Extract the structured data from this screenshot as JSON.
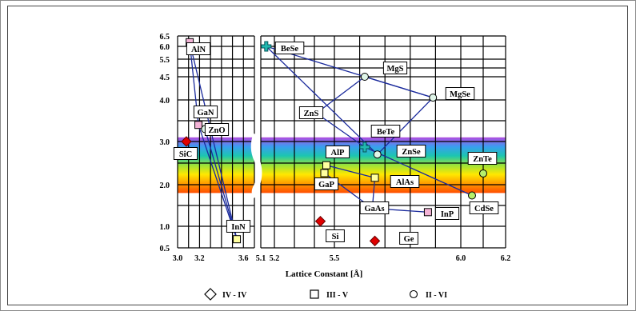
{
  "chart_data": {
    "type": "scatter",
    "title": "",
    "xlabel": "Lattice Constant [Å]",
    "ylabel": "",
    "x_panel_left": {
      "range": [
        3.0,
        3.7
      ],
      "ticks": [
        3.0,
        3.2,
        3.6
      ],
      "tick_labels": [
        "3.0",
        "3.2",
        "3.6"
      ]
    },
    "x_panel_right": {
      "range": [
        5.1,
        6.2
      ],
      "ticks": [
        5.1,
        5.2,
        5.5,
        6.0,
        6.2
      ],
      "tick_labels": [
        "5.1",
        "5.2",
        "5.5",
        "6.0",
        "6.2"
      ]
    },
    "y_ticks": [
      0.5,
      1.0,
      1.5,
      2.0,
      2.5,
      3.0,
      3.5,
      4.0,
      4.5,
      5.0,
      5.5,
      6.0,
      6.5
    ],
    "y_tick_labels": [
      "0.5",
      "1.0",
      "",
      "2.0",
      "",
      "3.0",
      "",
      "4.0",
      "4.5",
      "",
      "5.5",
      "6.0",
      "6.5"
    ],
    "y_scale": "nonlinear",
    "grid": true,
    "visible_spectrum_band": {
      "ymin": 1.8,
      "ymax": 3.1,
      "colors": [
        "#ff4d00",
        "#ff9a00",
        "#ffe800",
        "#9be23a",
        "#1cc6b0",
        "#3a9ef0",
        "#b24be0"
      ]
    },
    "points": [
      {
        "name": "AlN",
        "x": 3.11,
        "y": 6.2,
        "group": "III - V",
        "color": "#f3b3d6",
        "marker": "square"
      },
      {
        "name": "GaN",
        "x": 3.19,
        "y": 3.4,
        "group": "III - V",
        "color": "#f3b3d6",
        "marker": "square"
      },
      {
        "name": "InN",
        "x": 3.54,
        "y": 0.7,
        "group": "III - V",
        "color": "#ffffa0",
        "marker": "square"
      },
      {
        "name": "SiC",
        "x": 3.08,
        "y": 3.0,
        "group": "IV - IV",
        "color": "#e00000",
        "marker": "diamond"
      },
      {
        "name": "ZnO",
        "x": 3.25,
        "y": 3.3,
        "group": "II - VI",
        "color": "#dff5e8",
        "marker": "circle"
      },
      {
        "name": "BeSe",
        "x": 5.14,
        "y": 6.0,
        "group": "II - VI",
        "color": "#20b8b0",
        "marker": "cross"
      },
      {
        "name": "MgS",
        "x": 5.62,
        "y": 4.5,
        "group": "II - VI",
        "color": "#dff5e8",
        "marker": "circle"
      },
      {
        "name": "MgSe",
        "x": 5.89,
        "y": 4.05,
        "group": "II - VI",
        "color": "#dff5e8",
        "marker": "circle"
      },
      {
        "name": "ZnS",
        "x": 5.41,
        "y": 3.68,
        "group": "II - VI",
        "color": "#dff5e8",
        "marker": "circle"
      },
      {
        "name": "BeTe",
        "x": 5.62,
        "y": 2.87,
        "group": "II - VI",
        "color": "#20b8b0",
        "marker": "cross"
      },
      {
        "name": "ZnSe",
        "x": 5.67,
        "y": 2.7,
        "group": "II - VI",
        "color": "#dff5e8",
        "marker": "circle"
      },
      {
        "name": "AlP",
        "x": 5.46,
        "y": 2.45,
        "group": "III - V",
        "color": "#ffffa0",
        "marker": "square"
      },
      {
        "name": "GaP",
        "x": 5.45,
        "y": 2.27,
        "group": "III - V",
        "color": "#ffffa0",
        "marker": "square"
      },
      {
        "name": "AlAs",
        "x": 5.66,
        "y": 2.16,
        "group": "III - V",
        "color": "#ffffa0",
        "marker": "square"
      },
      {
        "name": "ZnTe",
        "x": 6.1,
        "y": 2.26,
        "group": "II - VI",
        "color": "#b6f06b",
        "marker": "circle"
      },
      {
        "name": "CdSe",
        "x": 6.05,
        "y": 1.74,
        "group": "II - VI",
        "color": "#b6f06b",
        "marker": "circle"
      },
      {
        "name": "GaAs",
        "x": 5.65,
        "y": 1.43,
        "group": "III - V",
        "color": "#f3b3d6",
        "marker": "square"
      },
      {
        "name": "InP",
        "x": 5.87,
        "y": 1.34,
        "group": "III - V",
        "color": "#f3b3d6",
        "marker": "square"
      },
      {
        "name": "Si",
        "x": 5.43,
        "y": 1.12,
        "group": "IV - IV",
        "color": "#e00000",
        "marker": "diamond"
      },
      {
        "name": "Ge",
        "x": 5.66,
        "y": 0.66,
        "group": "IV - IV",
        "color": "#e00000",
        "marker": "diamond"
      }
    ],
    "alloy_lines": [
      [
        "AlN",
        "InN"
      ],
      [
        "GaN",
        "InN"
      ],
      [
        "AlN",
        "GaN"
      ],
      [
        "ZnO",
        "InN"
      ],
      [
        "BeSe",
        "MgSe"
      ],
      [
        "BeSe",
        "ZnSe"
      ],
      [
        "MgS",
        "MgSe"
      ],
      [
        "MgS",
        "ZnS"
      ],
      [
        "ZnS",
        "BeTe"
      ],
      [
        "MgSe",
        "ZnSe"
      ],
      [
        "BeTe",
        "CdSe"
      ],
      [
        "AlP",
        "AlAs"
      ],
      [
        "GaP",
        "GaAs"
      ],
      [
        "AlAs",
        "GaAs"
      ],
      [
        "GaAs",
        "InP"
      ]
    ],
    "legend": {
      "placement": "bottom",
      "entries": [
        {
          "label": "IV - IV",
          "marker": "diamond"
        },
        {
          "label": "III - V",
          "marker": "square"
        },
        {
          "label": "II - VI",
          "marker": "circle"
        }
      ]
    }
  }
}
